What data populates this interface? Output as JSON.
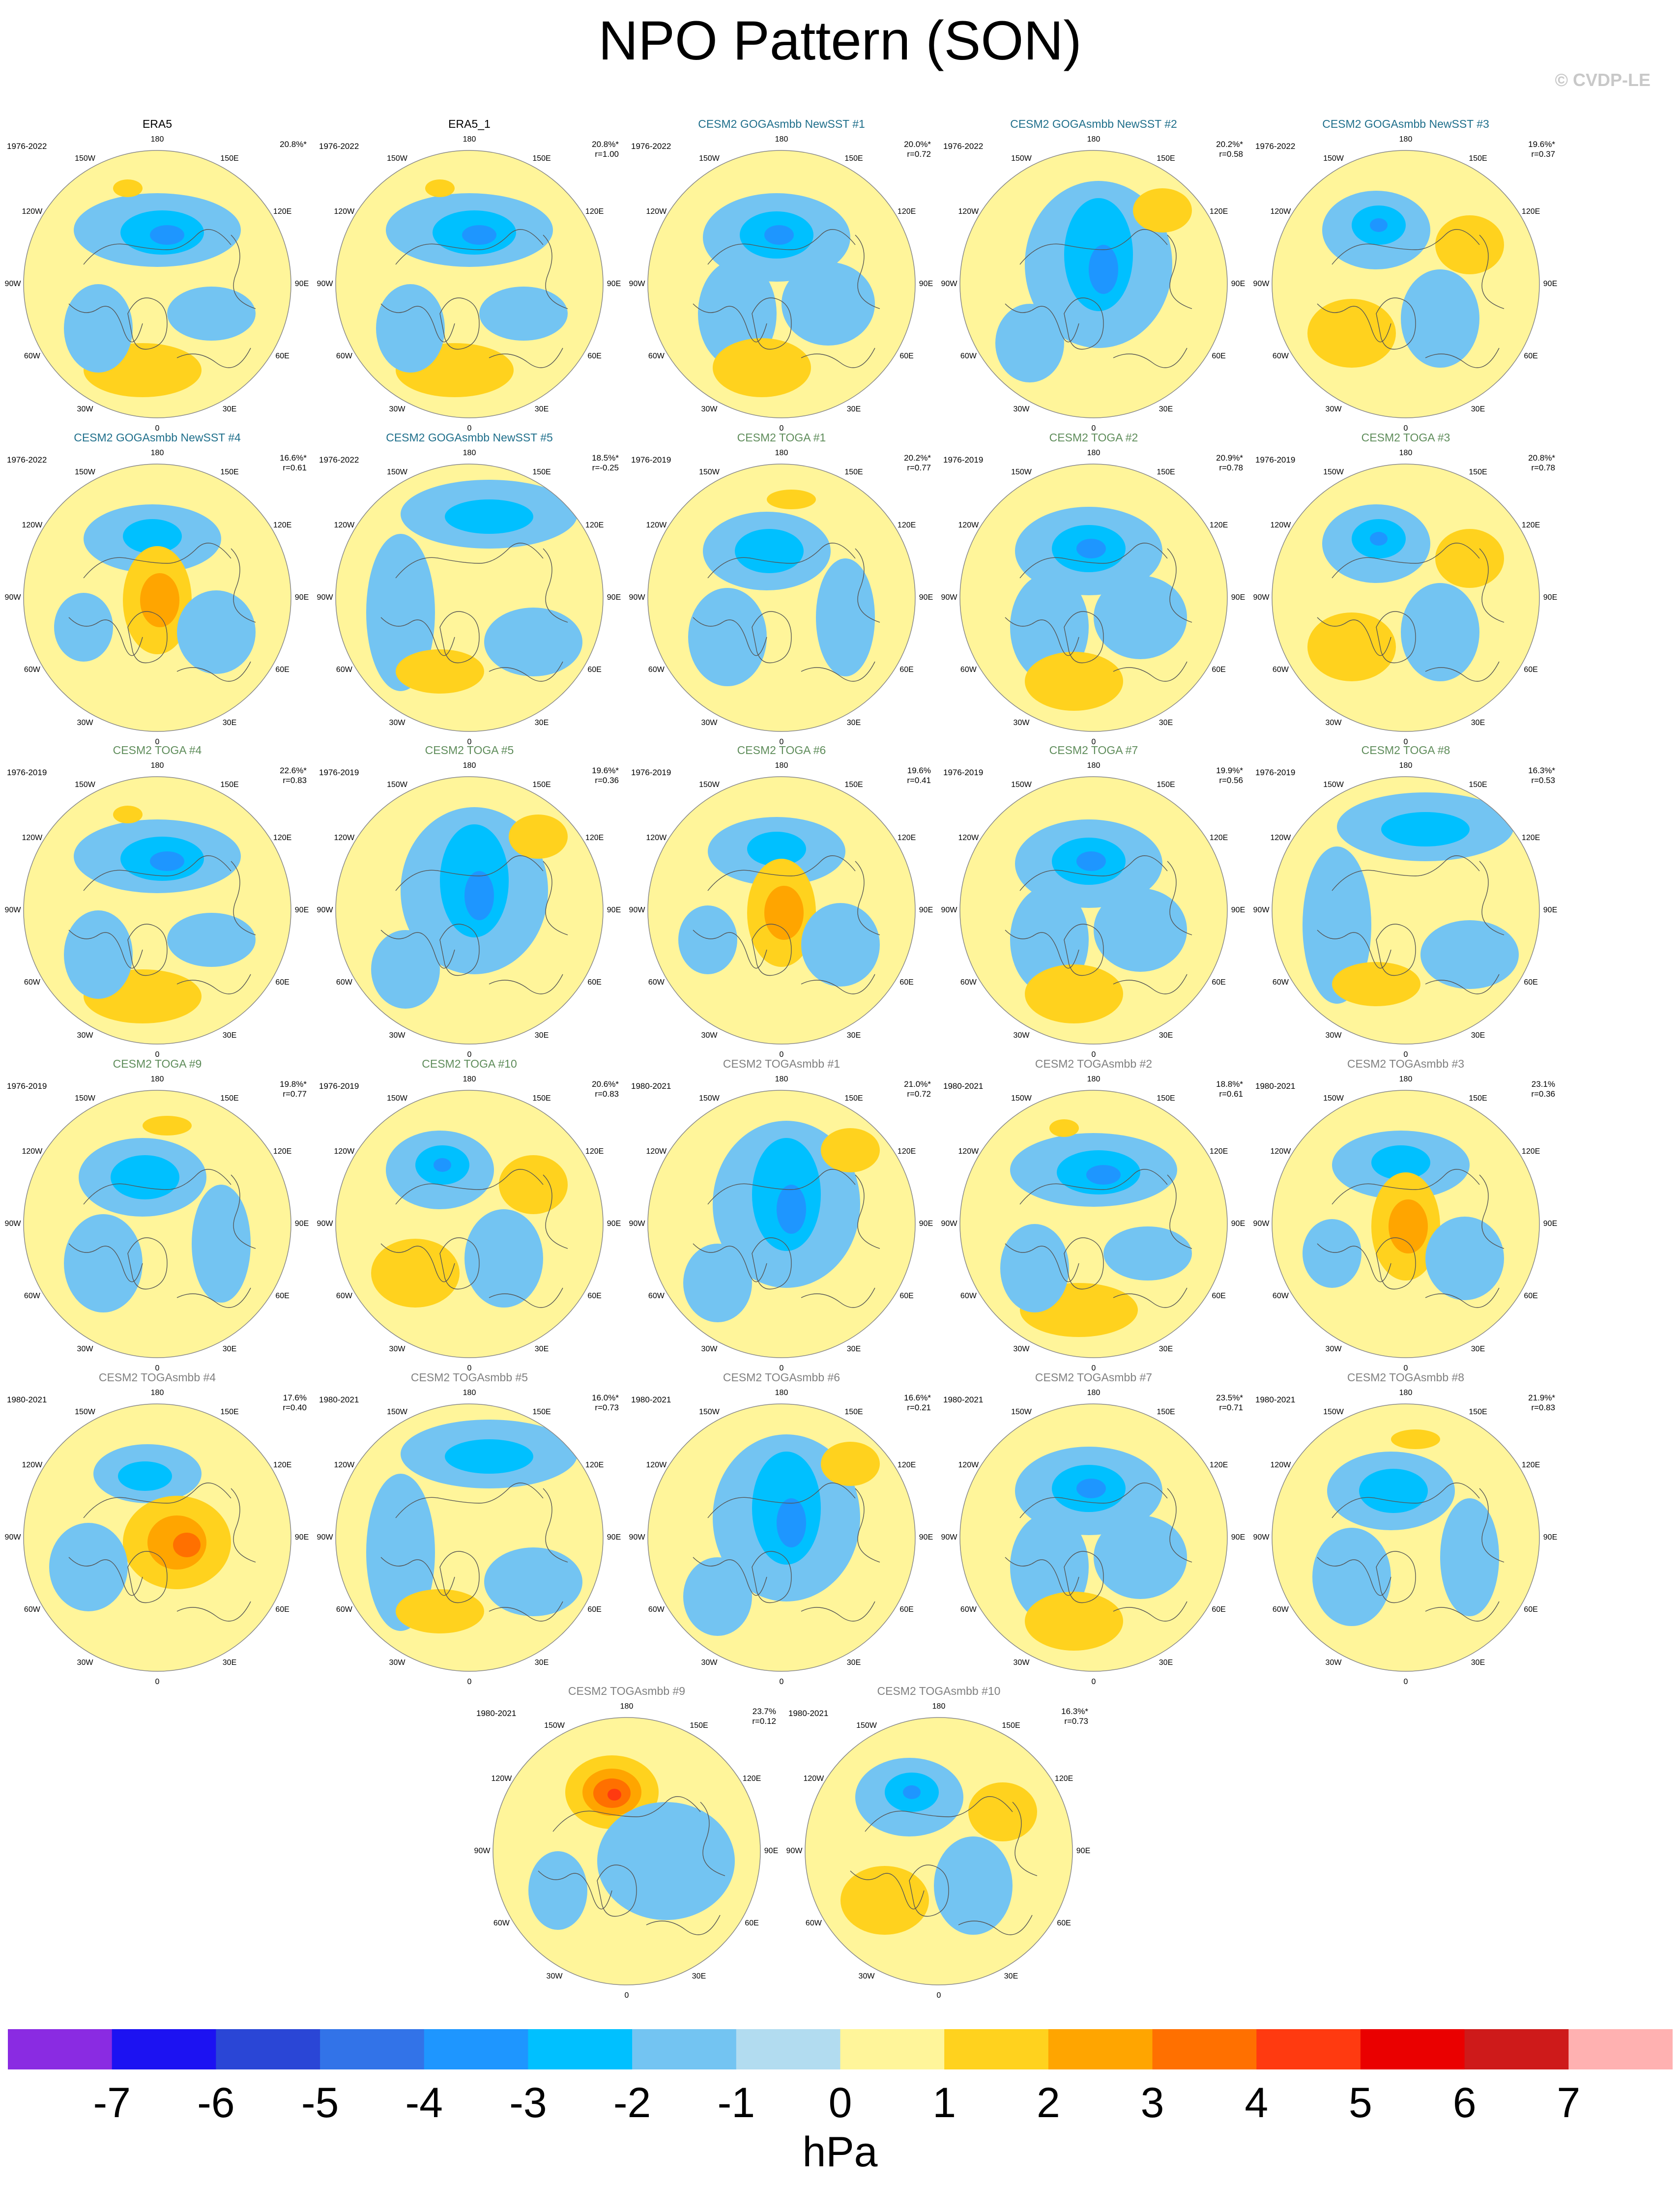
{
  "figure": {
    "title": "NPO Pattern (SON)",
    "credit": "© CVDP-LE",
    "units": "hPa"
  },
  "longitude_labels": [
    "180",
    "150E",
    "120E",
    "90E",
    "60E",
    "30E",
    "0",
    "30W",
    "60W",
    "90W",
    "120W",
    "150W"
  ],
  "colorbar": {
    "colors": [
      "#8a2be2",
      "#1c12f2",
      "#2a46d6",
      "#3273e8",
      "#1e96ff",
      "#00c0ff",
      "#73c4f2",
      "#b2dcf0",
      "#fff59a",
      "#ffd21e",
      "#ffa500",
      "#ff7000",
      "#ff3a10",
      "#ea0000",
      "#ce1a1a",
      "#ffb1b1"
    ],
    "labels": [
      "-7",
      "-6",
      "-5",
      "-4",
      "-3",
      "-2",
      "-1",
      "0",
      "1",
      "2",
      "3",
      "4",
      "5",
      "6",
      "7"
    ]
  },
  "panels": [
    {
      "title": "ERA5",
      "title_color": "#000000",
      "period": "1976-2022",
      "stat1": "20.8%*",
      "stat2": "",
      "variant": 0
    },
    {
      "title": "ERA5_1",
      "title_color": "#000000",
      "period": "1976-2022",
      "stat1": "20.8%*",
      "stat2": "r=1.00",
      "variant": 0
    },
    {
      "title": "CESM2 GOGAsmbb NewSST #1",
      "title_color": "#1f6f8b",
      "period": "1976-2022",
      "stat1": "20.0%*",
      "stat2": "r=0.72",
      "variant": 1
    },
    {
      "title": "CESM2 GOGAsmbb NewSST #2",
      "title_color": "#1f6f8b",
      "period": "1976-2022",
      "stat1": "20.2%*",
      "stat2": "r=0.58",
      "variant": 2
    },
    {
      "title": "CESM2 GOGAsmbb NewSST #3",
      "title_color": "#1f6f8b",
      "period": "1976-2022",
      "stat1": "19.6%*",
      "stat2": "r=0.37",
      "variant": 3
    },
    {
      "title": "CESM2 GOGAsmbb NewSST #4",
      "title_color": "#1f6f8b",
      "period": "1976-2022",
      "stat1": "16.6%*",
      "stat2": "r=0.61",
      "variant": 4
    },
    {
      "title": "CESM2 GOGAsmbb NewSST #5",
      "title_color": "#1f6f8b",
      "period": "1976-2022",
      "stat1": "18.5%*",
      "stat2": "r=-0.25",
      "variant": 5
    },
    {
      "title": "CESM2 TOGA #1",
      "title_color": "#5e8c5a",
      "period": "1976-2019",
      "stat1": "20.2%*",
      "stat2": "r=0.77",
      "variant": 6
    },
    {
      "title": "CESM2 TOGA #2",
      "title_color": "#5e8c5a",
      "period": "1976-2019",
      "stat1": "20.9%*",
      "stat2": "r=0.78",
      "variant": 1
    },
    {
      "title": "CESM2 TOGA #3",
      "title_color": "#5e8c5a",
      "period": "1976-2019",
      "stat1": "20.8%*",
      "stat2": "r=0.78",
      "variant": 3
    },
    {
      "title": "CESM2 TOGA #4",
      "title_color": "#5e8c5a",
      "period": "1976-2019",
      "stat1": "22.6%*",
      "stat2": "r=0.83",
      "variant": 0
    },
    {
      "title": "CESM2 TOGA #5",
      "title_color": "#5e8c5a",
      "period": "1976-2019",
      "stat1": "19.6%*",
      "stat2": "r=0.36",
      "variant": 2
    },
    {
      "title": "CESM2 TOGA #6",
      "title_color": "#5e8c5a",
      "period": "1976-2019",
      "stat1": "19.6%",
      "stat2": "r=0.41",
      "variant": 4
    },
    {
      "title": "CESM2 TOGA #7",
      "title_color": "#5e8c5a",
      "period": "1976-2019",
      "stat1": "19.9%*",
      "stat2": "r=0.56",
      "variant": 1
    },
    {
      "title": "CESM2 TOGA #8",
      "title_color": "#5e8c5a",
      "period": "1976-2019",
      "stat1": "16.3%*",
      "stat2": "r=0.53",
      "variant": 5
    },
    {
      "title": "CESM2 TOGA #9",
      "title_color": "#5e8c5a",
      "period": "1976-2019",
      "stat1": "19.8%*",
      "stat2": "r=0.77",
      "variant": 6
    },
    {
      "title": "CESM2 TOGA #10",
      "title_color": "#5e8c5a",
      "period": "1976-2019",
      "stat1": "20.6%*",
      "stat2": "r=0.83",
      "variant": 3
    },
    {
      "title": "CESM2 TOGAsmbb #1",
      "title_color": "#808080",
      "period": "1980-2021",
      "stat1": "21.0%*",
      "stat2": "r=0.72",
      "variant": 2
    },
    {
      "title": "CESM2 TOGAsmbb #2",
      "title_color": "#808080",
      "period": "1980-2021",
      "stat1": "18.8%*",
      "stat2": "r=0.61",
      "variant": 0
    },
    {
      "title": "CESM2 TOGAsmbb #3",
      "title_color": "#808080",
      "period": "1980-2021",
      "stat1": "23.1%",
      "stat2": "r=0.36",
      "variant": 4
    },
    {
      "title": "CESM2 TOGAsmbb #4",
      "title_color": "#808080",
      "period": "1980-2021",
      "stat1": "17.6%",
      "stat2": "r=0.40",
      "variant": 7
    },
    {
      "title": "CESM2 TOGAsmbb #5",
      "title_color": "#808080",
      "period": "1980-2021",
      "stat1": "16.0%*",
      "stat2": "r=0.73",
      "variant": 5
    },
    {
      "title": "CESM2 TOGAsmbb #6",
      "title_color": "#808080",
      "period": "1980-2021",
      "stat1": "16.6%*",
      "stat2": "r=0.21",
      "variant": 2
    },
    {
      "title": "CESM2 TOGAsmbb #7",
      "title_color": "#808080",
      "period": "1980-2021",
      "stat1": "23.5%*",
      "stat2": "r=0.71",
      "variant": 1
    },
    {
      "title": "CESM2 TOGAsmbb #8",
      "title_color": "#808080",
      "period": "1980-2021",
      "stat1": "21.9%*",
      "stat2": "r=0.83",
      "variant": 6
    },
    {
      "title": "CESM2 TOGAsmbb #9",
      "title_color": "#808080",
      "period": "1980-2021",
      "stat1": "23.7%",
      "stat2": "r=0.12",
      "variant": 8
    },
    {
      "title": "CESM2 TOGAsmbb #10",
      "title_color": "#808080",
      "period": "1980-2021",
      "stat1": "16.3%*",
      "stat2": "r=0.73",
      "variant": 3
    }
  ]
}
